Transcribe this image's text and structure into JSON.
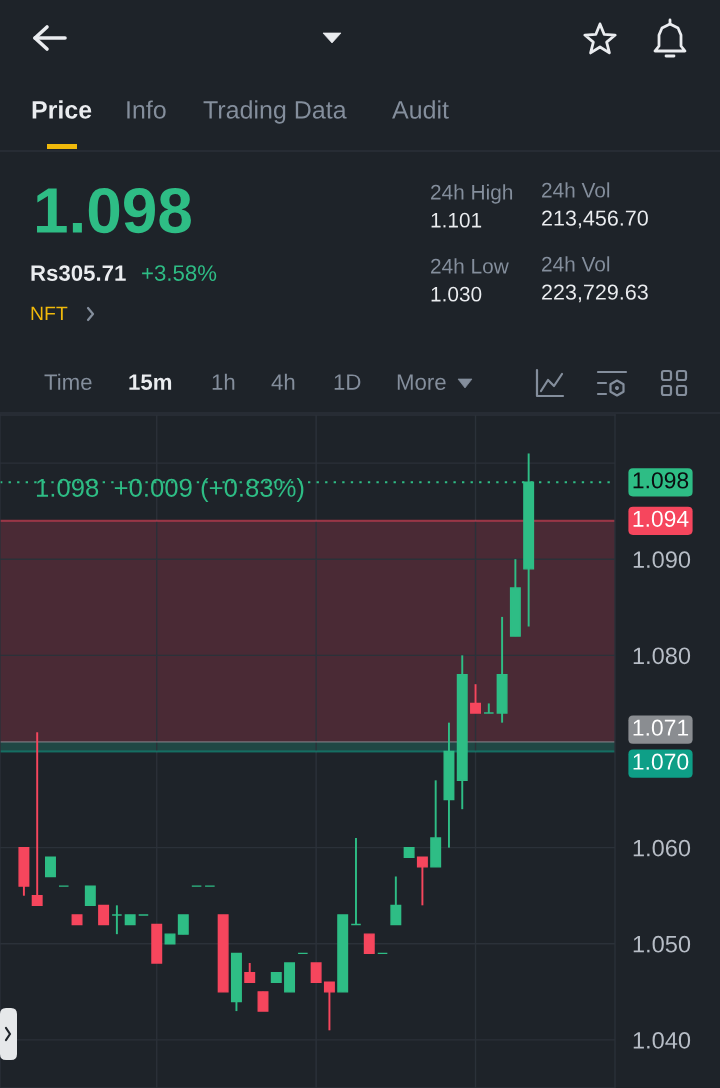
{
  "chart_data": [
    {
      "type": "other",
      "annotations": [
        "Price",
        "Info",
        "Trading Data",
        "Audit",
        "1.098",
        "Rs305.71",
        "+3.58%",
        "NFT",
        "24h High",
        "1.101",
        "24h Vol",
        "213,456.70",
        "24h Low",
        "1.030",
        "24h Vol",
        "223,729.63",
        "Time",
        "15m",
        "1h",
        "4h",
        "1D",
        "More"
      ]
    },
    {
      "type": "candlestick",
      "categories": [
        null,
        null,
        null,
        null,
        null,
        null,
        null,
        null,
        null,
        null,
        null,
        null,
        null,
        null,
        null,
        null,
        null,
        null,
        null,
        null,
        null,
        null,
        null,
        null,
        null,
        null,
        null,
        null,
        null,
        null,
        null,
        null,
        null,
        null,
        null,
        null,
        null,
        null,
        null
      ],
      "ohlc": [
        [
          1.06,
          1.06,
          1.055,
          1.056
        ],
        [
          1.055,
          1.072,
          1.054,
          1.054
        ],
        [
          1.057,
          1.059,
          1.057,
          1.059
        ],
        [
          1.056,
          1.056,
          1.056,
          1.056
        ],
        [
          1.053,
          1.053,
          1.052,
          1.052
        ],
        [
          1.054,
          1.056,
          1.054,
          1.056
        ],
        [
          1.054,
          1.054,
          1.052,
          1.052
        ],
        [
          1.053,
          1.054,
          1.051,
          1.053
        ],
        [
          1.052,
          1.053,
          1.052,
          1.053
        ],
        [
          1.053,
          1.053,
          1.053,
          1.053
        ],
        [
          1.052,
          1.052,
          1.048,
          1.048
        ],
        [
          1.05,
          1.051,
          1.05,
          1.051
        ],
        [
          1.051,
          1.053,
          1.051,
          1.053
        ],
        [
          1.056,
          1.056,
          1.056,
          1.056
        ],
        [
          1.056,
          1.056,
          1.056,
          1.056
        ],
        [
          1.053,
          1.053,
          1.045,
          1.045
        ],
        [
          1.044,
          1.049,
          1.043,
          1.049
        ],
        [
          1.047,
          1.048,
          1.046,
          1.046
        ],
        [
          1.045,
          1.045,
          1.043,
          1.043
        ],
        [
          1.046,
          1.047,
          1.046,
          1.047
        ],
        [
          1.045,
          1.048,
          1.045,
          1.048
        ],
        [
          1.049,
          1.049,
          1.049,
          1.049
        ],
        [
          1.048,
          1.048,
          1.046,
          1.046
        ],
        [
          1.046,
          1.046,
          1.041,
          1.045
        ],
        [
          1.045,
          1.053,
          1.045,
          1.053
        ],
        [
          1.052,
          1.061,
          1.052,
          1.052
        ],
        [
          1.051,
          1.051,
          1.049,
          1.049
        ],
        [
          1.049,
          1.049,
          1.049,
          1.049
        ],
        [
          1.052,
          1.057,
          1.052,
          1.054
        ],
        [
          1.059,
          1.06,
          1.059,
          1.06
        ],
        [
          1.059,
          1.059,
          1.054,
          1.058
        ],
        [
          1.058,
          1.067,
          1.058,
          1.061
        ],
        [
          1.065,
          1.073,
          1.06,
          1.07
        ],
        [
          1.067,
          1.08,
          1.064,
          1.078
        ],
        [
          1.075,
          1.077,
          1.074,
          1.074
        ],
        [
          1.074,
          1.075,
          1.074,
          1.074
        ],
        [
          1.074,
          1.084,
          1.073,
          1.078
        ],
        [
          1.082,
          1.09,
          1.082,
          1.087
        ],
        [
          1.089,
          1.101,
          1.083,
          1.098
        ]
      ],
      "colors": [
        "#f6465d",
        "#f6465d",
        "#2ebd85",
        "#2ebd85",
        "#f6465d",
        "#2ebd85",
        "#f6465d",
        "#2ebd85",
        "#2ebd85",
        "#2ebd85",
        "#f6465d",
        "#2ebd85",
        "#2ebd85",
        "#2ebd85",
        "#2ebd85",
        "#f6465d",
        "#2ebd85",
        "#f6465d",
        "#f6465d",
        "#2ebd85",
        "#2ebd85",
        "#2ebd85",
        "#f6465d",
        "#f6465d",
        "#2ebd85",
        "#2ebd85",
        "#f6465d",
        "#2ebd85",
        "#2ebd85",
        "#2ebd85",
        "#f6465d",
        "#2ebd85",
        "#2ebd85",
        "#2ebd85",
        "#f6465d",
        "#2ebd85",
        "#2ebd85",
        "#2ebd85",
        "#2ebd85"
      ],
      "ylim": [
        1.035,
        1.105
      ],
      "yticks": [
        {
          "value": 1.04,
          "label": "1.040"
        },
        {
          "value": 1.05,
          "label": "1.050"
        },
        {
          "value": 1.06,
          "label": "1.060"
        },
        {
          "value": 1.08,
          "label": "1.080"
        },
        {
          "value": 1.09,
          "label": "1.090"
        },
        {
          "value": 1.1,
          "label": null
        }
      ],
      "grid": true,
      "tick_labels": "y",
      "ref_lines": [
        {
          "axis": "y",
          "value": 1.098,
          "label": "1.098",
          "color": "#2ebd85",
          "line_style": "dotted"
        },
        {
          "axis": "y",
          "value": 1.094,
          "label": "1.094",
          "color": "#f6465d",
          "line_style": "solid"
        },
        {
          "axis": "y",
          "value": 1.071,
          "label": "1.071",
          "color": "#8a8d91",
          "line_style": "solid"
        },
        {
          "axis": "y",
          "value": 1.07,
          "label": "1.070",
          "color": "#0e9f87",
          "line_style": "solid"
        }
      ],
      "bands": [
        {
          "axis": "y",
          "from": 1.071,
          "to": 1.094,
          "color": "#4a2a35"
        },
        {
          "axis": "y",
          "from": 1.07,
          "to": 1.071,
          "color": "#1f4744"
        }
      ],
      "annotations": [
        "1.098  +0.009 (+0.83%)"
      ]
    }
  ]
}
